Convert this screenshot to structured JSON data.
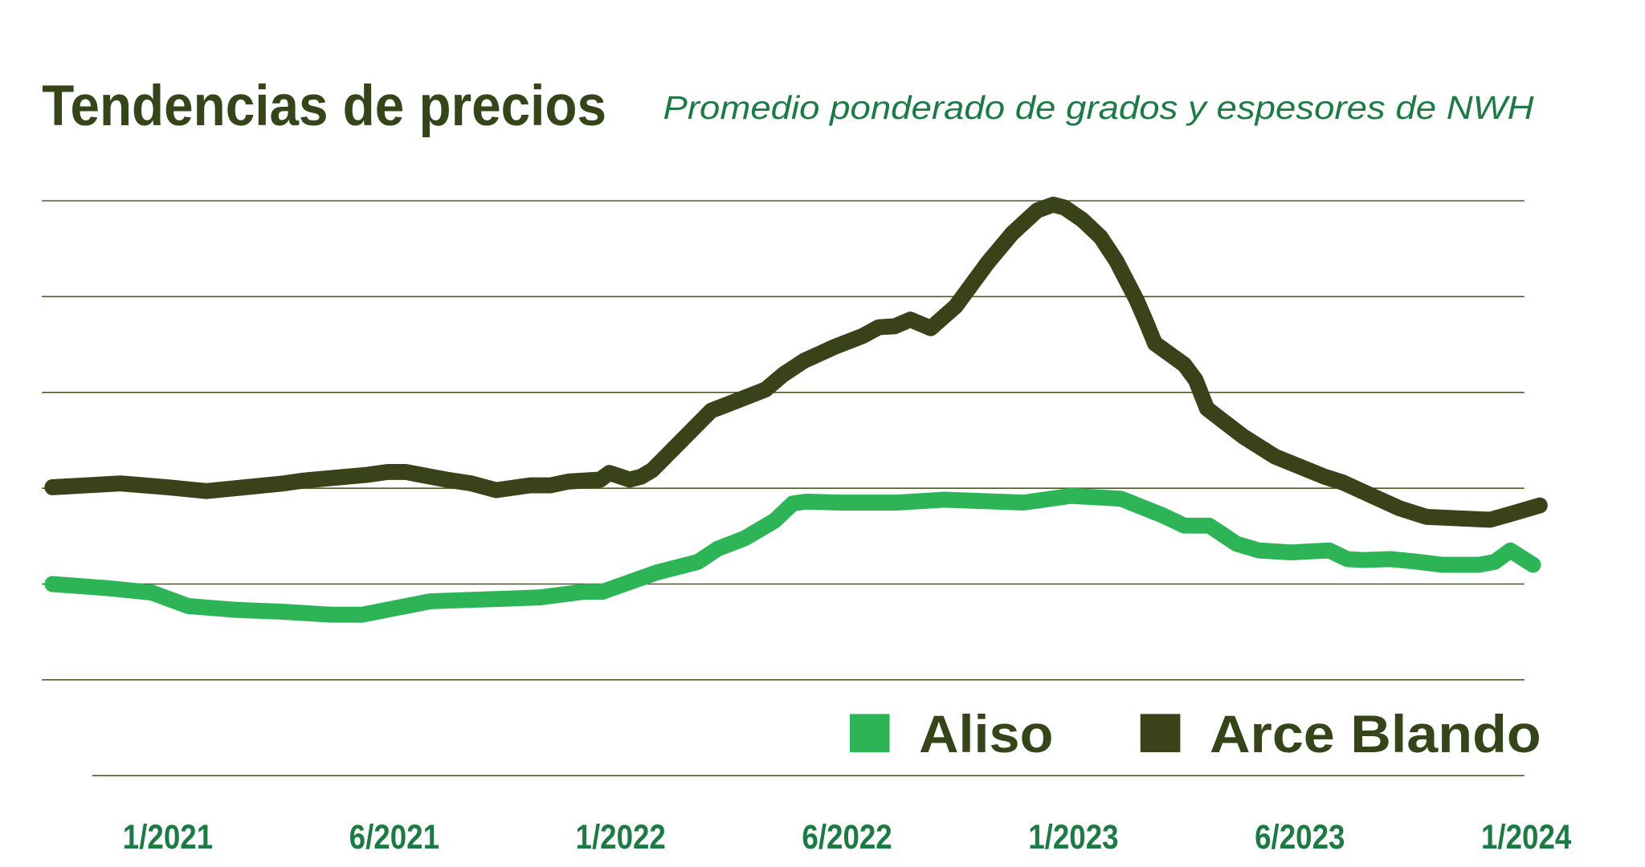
{
  "chart_data": {
    "type": "line",
    "title": "Tendencias de precios",
    "subtitle": "Promedio ponderado de grados y espesores de NWH",
    "xlim": [
      -0.55,
      6.1
    ],
    "xticks": [
      {
        "value": 0,
        "label": "1/2021"
      },
      {
        "value": 1,
        "label": "6/2021"
      },
      {
        "value": 2,
        "label": "1/2022"
      },
      {
        "value": 3,
        "label": "6/2022"
      },
      {
        "value": 4,
        "label": "1/2023"
      },
      {
        "value": 5,
        "label": "6/2023"
      },
      {
        "value": 6,
        "label": "1/2024"
      }
    ],
    "ylim": [
      0,
      6
    ],
    "yticks": [
      0,
      1,
      2,
      3,
      4,
      5,
      6
    ],
    "grid": true,
    "legend": "bottom-right",
    "series": [
      {
        "name": "Aliso",
        "color": "#2db457",
        "x": [
          -0.51,
          -0.28,
          -0.07,
          0.09,
          0.3,
          0.51,
          0.72,
          0.86,
          1.16,
          1.41,
          1.64,
          1.84,
          1.92,
          2.16,
          2.34,
          2.43,
          2.55,
          2.68,
          2.76,
          2.82,
          2.97,
          3.22,
          3.43,
          3.78,
          3.99,
          4.21,
          4.39,
          4.49,
          4.6,
          4.72,
          4.82,
          4.96,
          5.13,
          5.21,
          5.28,
          5.4,
          5.49,
          5.63,
          5.79,
          5.86,
          5.93,
          6.03
        ],
        "values": [
          2.0,
          1.96,
          1.91,
          1.77,
          1.73,
          1.71,
          1.68,
          1.68,
          1.82,
          1.84,
          1.86,
          1.92,
          1.92,
          2.12,
          2.23,
          2.37,
          2.48,
          2.66,
          2.84,
          2.86,
          2.85,
          2.85,
          2.88,
          2.85,
          2.92,
          2.89,
          2.72,
          2.61,
          2.61,
          2.42,
          2.35,
          2.33,
          2.35,
          2.26,
          2.25,
          2.26,
          2.24,
          2.2,
          2.2,
          2.23,
          2.35,
          2.2
        ]
      },
      {
        "name": "Arce Blando",
        "color": "#3a4219",
        "x": [
          -0.51,
          -0.21,
          0,
          0.17,
          0.51,
          0.6,
          0.88,
          0.97,
          1.05,
          1.23,
          1.34,
          1.45,
          1.6,
          1.69,
          1.77,
          1.91,
          1.95,
          2.04,
          2.09,
          2.14,
          2.4,
          2.5,
          2.64,
          2.72,
          2.81,
          2.94,
          3.07,
          3.14,
          3.21,
          3.28,
          3.37,
          3.48,
          3.62,
          3.73,
          3.84,
          3.91,
          3.96,
          4.04,
          4.12,
          4.19,
          4.28,
          4.32,
          4.36,
          4.49,
          4.54,
          4.59,
          4.75,
          4.89,
          5.11,
          5.19,
          5.31,
          5.44,
          5.56,
          5.84,
          5.93,
          6.06
        ],
        "values": [
          3.01,
          3.05,
          3.01,
          2.97,
          3.05,
          3.08,
          3.14,
          3.17,
          3.17,
          3.09,
          3.05,
          2.98,
          3.03,
          3.03,
          3.07,
          3.09,
          3.16,
          3.09,
          3.12,
          3.19,
          3.81,
          3.9,
          4.03,
          4.19,
          4.33,
          4.47,
          4.59,
          4.68,
          4.69,
          4.76,
          4.67,
          4.9,
          5.35,
          5.66,
          5.9,
          5.96,
          5.93,
          5.8,
          5.62,
          5.37,
          4.96,
          4.74,
          4.51,
          4.29,
          4.13,
          3.83,
          3.54,
          3.33,
          3.12,
          3.06,
          2.93,
          2.79,
          2.7,
          2.67,
          2.73,
          2.82
        ]
      }
    ]
  }
}
